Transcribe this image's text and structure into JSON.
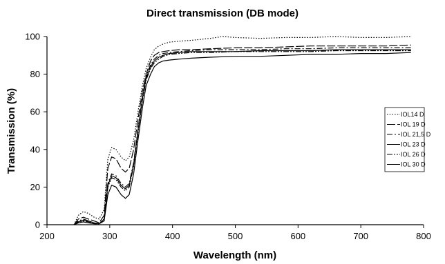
{
  "chart_data": {
    "type": "line",
    "title": "Direct transmission (DB mode)",
    "xlabel": "Wavelength (nm)",
    "ylabel": "Transmission (%)",
    "xlim": [
      200,
      800
    ],
    "ylim": [
      0,
      100
    ],
    "xticks": [
      200,
      300,
      400,
      500,
      600,
      700,
      800
    ],
    "yticks": [
      0,
      20,
      40,
      60,
      80,
      100
    ],
    "grid": false,
    "legend_position": "right",
    "series": [
      {
        "name": "IOL14 D",
        "style": "dotted",
        "x": [
          243,
          250,
          258,
          266,
          275,
          283,
          291,
          297,
          303,
          310,
          318,
          325,
          331,
          338,
          345,
          352,
          358,
          365,
          371,
          378,
          385,
          395,
          410,
          430,
          460,
          480,
          500,
          540,
          580,
          620,
          660,
          700,
          740,
          780
        ],
        "y": [
          0,
          5,
          7,
          6,
          4,
          3,
          8,
          35,
          41,
          40,
          36,
          34,
          36,
          45,
          60,
          74,
          83,
          89,
          93,
          95,
          96,
          97,
          97.5,
          98,
          99,
          100,
          99.5,
          99,
          99.5,
          99.5,
          100,
          99.5,
          99.5,
          100
        ]
      },
      {
        "name": "IOL 19 D",
        "style": "long-dash",
        "x": [
          243,
          250,
          258,
          266,
          275,
          283,
          291,
          297,
          303,
          310,
          318,
          325,
          331,
          338,
          345,
          352,
          358,
          365,
          371,
          378,
          385,
          395,
          410,
          430,
          460,
          500,
          540,
          580,
          620,
          660,
          700,
          740,
          780
        ],
        "y": [
          0,
          3,
          4,
          3,
          2,
          1,
          5,
          30,
          36,
          35,
          30,
          28,
          30,
          40,
          56,
          71,
          80,
          87,
          90,
          91.5,
          92,
          92.5,
          93,
          93,
          93.5,
          94,
          94,
          94.5,
          95,
          95,
          95,
          95,
          95.5
        ]
      },
      {
        "name": "IOL 21,5 D",
        "style": "dash-dot",
        "x": [
          243,
          250,
          258,
          266,
          275,
          283,
          291,
          297,
          303,
          310,
          318,
          325,
          331,
          338,
          345,
          352,
          358,
          365,
          371,
          378,
          385,
          395,
          410,
          430,
          460,
          500,
          540,
          580,
          620,
          660,
          700,
          740,
          780
        ],
        "y": [
          0,
          2,
          3,
          2,
          1,
          0.5,
          3,
          22,
          27,
          26,
          22,
          20,
          22,
          33,
          51,
          68,
          79,
          85,
          88,
          90,
          91,
          91.5,
          92,
          92.5,
          93,
          93,
          93,
          93.5,
          93.5,
          94,
          94,
          94,
          94
        ]
      },
      {
        "name": "IOL 23 D",
        "style": "solid",
        "x": [
          243,
          250,
          258,
          266,
          275,
          283,
          291,
          297,
          303,
          310,
          318,
          325,
          331,
          338,
          345,
          352,
          358,
          365,
          371,
          378,
          385,
          395,
          410,
          430,
          460,
          500,
          540,
          580,
          620,
          660,
          700,
          740,
          780
        ],
        "y": [
          0,
          1.5,
          2.5,
          2,
          1,
          0.5,
          3,
          21,
          26,
          25,
          21,
          19,
          21,
          32,
          50,
          67,
          78,
          84,
          87,
          89,
          90,
          91,
          91.5,
          92,
          92,
          92,
          92.5,
          92.5,
          92.5,
          93,
          93,
          93,
          93
        ]
      },
      {
        "name": "IOL 26 D",
        "style": "dash-dot-dot",
        "x": [
          243,
          250,
          258,
          266,
          275,
          283,
          291,
          297,
          303,
          310,
          318,
          325,
          331,
          338,
          345,
          352,
          358,
          365,
          371,
          378,
          385,
          395,
          410,
          430,
          460,
          500,
          540,
          580,
          620,
          660,
          700,
          740,
          780
        ],
        "y": [
          0,
          1,
          2,
          1.5,
          0.5,
          0.5,
          2,
          20,
          25,
          24,
          20,
          18,
          20,
          31,
          49,
          66,
          77,
          83,
          86,
          88,
          89.5,
          90.5,
          91,
          91.5,
          91.5,
          92,
          92,
          92,
          92,
          92.5,
          92.5,
          92.5,
          92.5
        ]
      },
      {
        "name": "IOL 30 D",
        "style": "solid",
        "x": [
          243,
          250,
          258,
          266,
          275,
          283,
          291,
          297,
          303,
          310,
          318,
          325,
          331,
          338,
          345,
          352,
          358,
          365,
          371,
          378,
          385,
          395,
          410,
          430,
          460,
          500,
          540,
          580,
          620,
          660,
          700,
          740,
          780
        ],
        "y": [
          0,
          1,
          1.5,
          1,
          0.5,
          0.5,
          2,
          16,
          21,
          20,
          16,
          14,
          16,
          27,
          45,
          62,
          74,
          80,
          84,
          86,
          87,
          87.5,
          88,
          88.5,
          89,
          89.5,
          89.5,
          90,
          90.5,
          90.5,
          91,
          91,
          91.5
        ]
      }
    ]
  }
}
